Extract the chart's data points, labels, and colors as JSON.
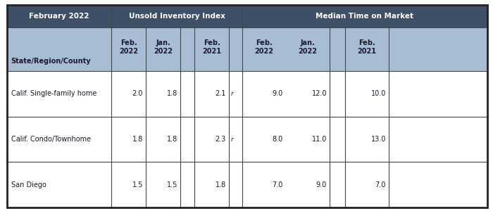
{
  "title_row": "February 2022",
  "header1": "Unsold Inventory Index",
  "header2": "Median Time on Market",
  "col_label": "State/Region/County",
  "rows": [
    {
      "label": "Calif. Single-family home",
      "inv_feb22": "2.0",
      "inv_jan22": "1.8",
      "inv_feb21": "2.1",
      "inv_r": "r",
      "med_feb22": "9.0",
      "med_jan22": "12.0",
      "med_feb21": "10.0"
    },
    {
      "label": "Calif. Condo/Townhome",
      "inv_feb22": "1.8",
      "inv_jan22": "1.8",
      "inv_feb21": "2.3",
      "inv_r": "r",
      "med_feb22": "8.0",
      "med_jan22": "11.0",
      "med_feb21": "13.0"
    },
    {
      "label": "San Diego",
      "inv_feb22": "1.5",
      "inv_jan22": "1.5",
      "inv_feb21": "1.8",
      "inv_r": "",
      "med_feb22": "7.0",
      "med_jan22": "9.0",
      "med_feb21": "7.0"
    }
  ],
  "dark_header_bg": "#3d5068",
  "light_header_bg": "#a8bdd4",
  "white_bg": "#ffffff",
  "border_color": "#444444",
  "header_text_color": "#ffffff",
  "sub_text_color": "#1a1a2e",
  "data_text_color": "#1a1a2e",
  "outer_border_color": "#222222",
  "outer_border_lw": 2.0,
  "inner_border_lw": 0.8,
  "header_fontsize": 7.5,
  "sub_fontsize": 7.0,
  "data_fontsize": 7.0
}
